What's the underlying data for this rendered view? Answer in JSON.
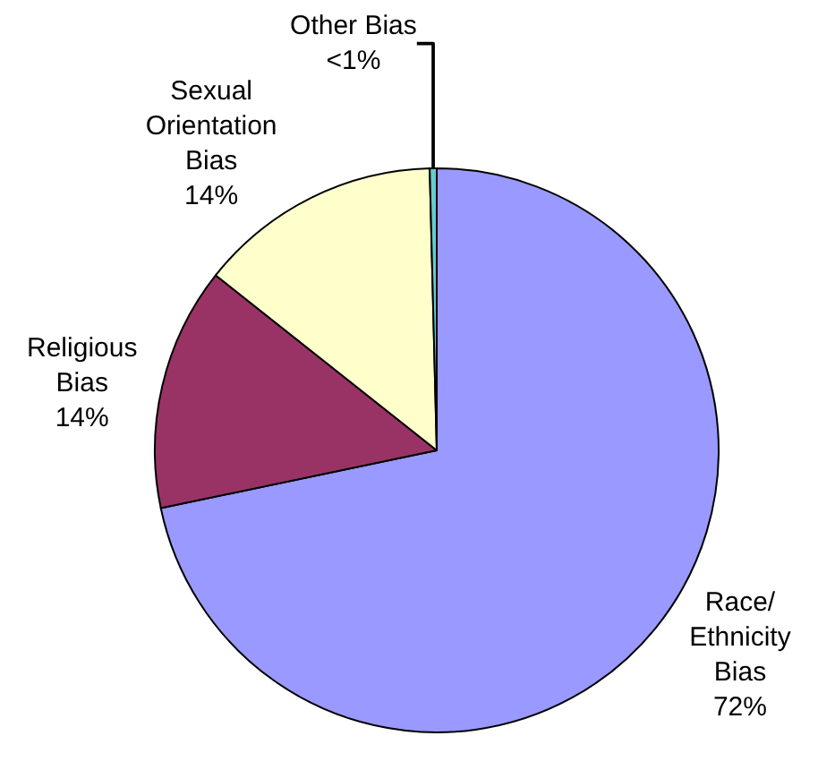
{
  "chart_data": {
    "type": "pie",
    "categories": [
      "Race/\nEthnicity\nBias",
      "Religious\nBias",
      "Sexual\nOrientation\nBias",
      "Other Bias"
    ],
    "values": [
      72,
      14,
      14,
      0.4
    ],
    "value_labels": [
      "72%",
      "14%",
      "14%",
      "<1%"
    ],
    "colors": [
      "#9999ff",
      "#993366",
      "#ffffcc",
      "#66cccc"
    ],
    "legend": false
  }
}
